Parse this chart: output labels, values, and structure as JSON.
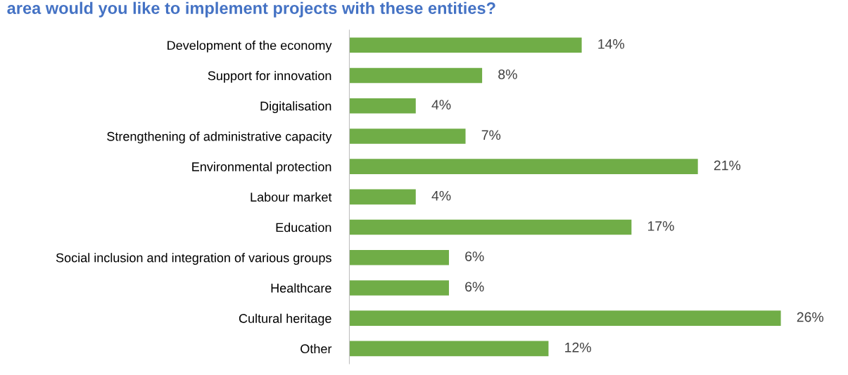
{
  "chart_data": {
    "type": "bar",
    "orientation": "horizontal",
    "title": "area would you like to implement projects with these entities?",
    "categories": [
      "Development of the economy",
      "Support for innovation",
      "Digitalisation",
      "Strengthening of administrative capacity",
      "Environmental protection",
      "Labour market",
      "Education",
      "Social inclusion and integration of various groups",
      "Healthcare",
      "Cultural heritage",
      "Other"
    ],
    "values": [
      14,
      8,
      4,
      7,
      21,
      4,
      17,
      6,
      6,
      26,
      12
    ],
    "value_labels": [
      "14%",
      "8%",
      "4%",
      "7%",
      "21%",
      "4%",
      "17%",
      "6%",
      "6%",
      "26%",
      "12%"
    ],
    "color": "#70ad47",
    "grid": false,
    "legend": false
  }
}
